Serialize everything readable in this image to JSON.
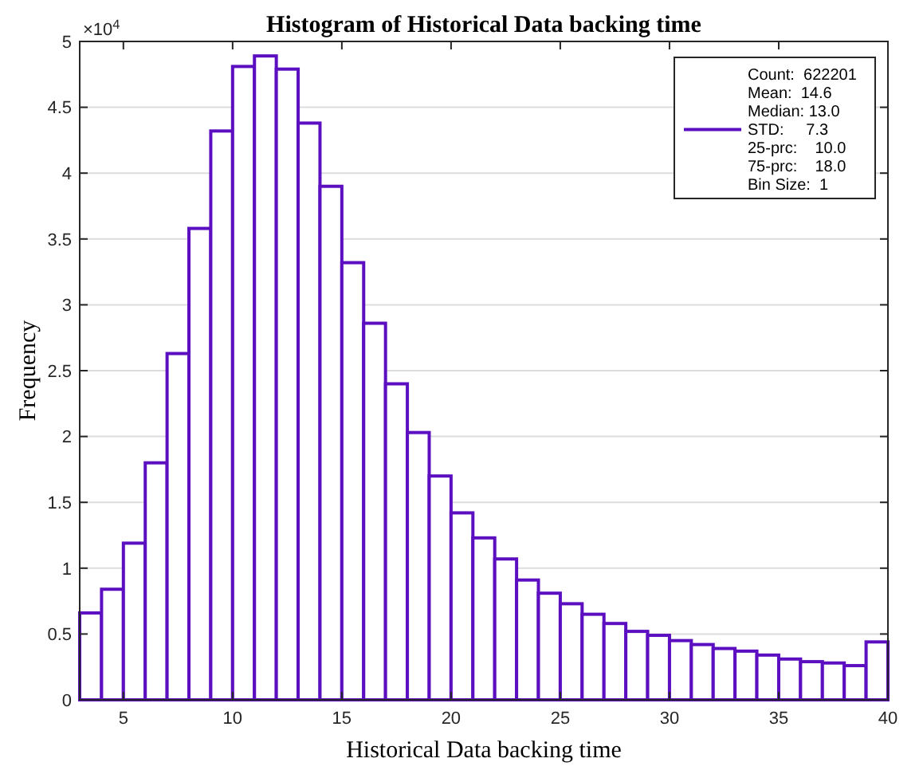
{
  "chart_data": {
    "type": "histogram",
    "title": "Histogram of Historical Data backing time",
    "xlabel": "Historical Data backing time",
    "ylabel": "Frequency",
    "annotations": [
      "×10$^{4}$"
    ],
    "bins": [
      3,
      4,
      5,
      6,
      7,
      8,
      9,
      10,
      11,
      12,
      13,
      14,
      15,
      16,
      17,
      18,
      19,
      20,
      21,
      22,
      23,
      24,
      25,
      26,
      27,
      28,
      29,
      30,
      31,
      32,
      33,
      34,
      35,
      36,
      37,
      38,
      39,
      40
    ],
    "series": [
      {
        "name": "Count:  622201\nMean:  14.6\nMedian: 13.0\nSTD:     7.3\n25-prc:    10.0\n75-prc:    18.0\nBin Size:  1",
        "color": "#5c0fc0",
        "values": [
          0.66,
          0.84,
          1.19,
          1.8,
          2.63,
          3.58,
          4.32,
          4.81,
          4.89,
          4.79,
          4.38,
          3.9,
          3.32,
          2.86,
          2.4,
          2.03,
          1.7,
          1.42,
          1.23,
          1.07,
          0.91,
          0.81,
          0.73,
          0.65,
          0.58,
          0.52,
          0.49,
          0.45,
          0.42,
          0.39,
          0.37,
          0.34,
          0.31,
          0.29,
          0.28,
          0.26,
          0.44
        ]
      }
    ],
    "xlim": [
      3,
      40
    ],
    "xticks": [
      5,
      10,
      15,
      20,
      25,
      30,
      35,
      40
    ],
    "ylim": [
      0,
      5
    ],
    "yticks": [
      0,
      0.5,
      1,
      1.5,
      2,
      2.5,
      3,
      3.5,
      4,
      4.5,
      5
    ],
    "grid": "y",
    "legend": "top right"
  }
}
